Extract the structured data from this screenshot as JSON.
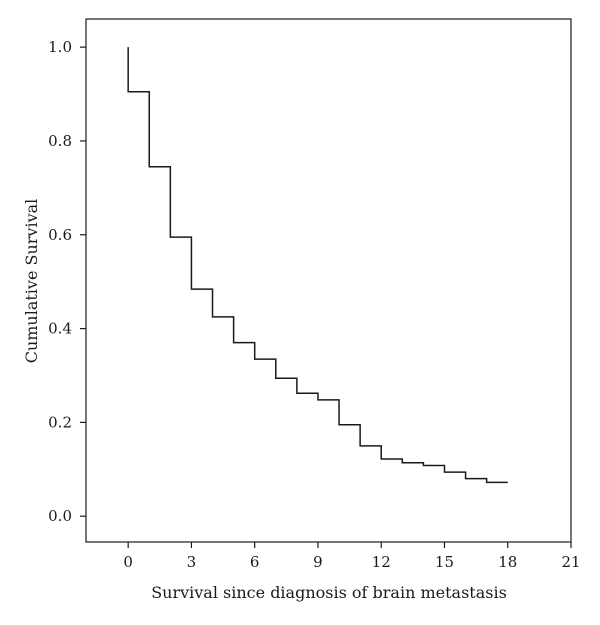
{
  "chart_data": {
    "type": "line",
    "step": true,
    "xlabel": "Survival since diagnosis of brain metastasis",
    "ylabel": "Cumulative Survival",
    "xlim": [
      -2,
      21
    ],
    "ylim": [
      -0.055,
      1.06
    ],
    "xticks": [
      0,
      3,
      6,
      9,
      12,
      15,
      18,
      21
    ],
    "yticks": [
      0.0,
      0.2,
      0.4,
      0.6,
      0.8,
      1.0
    ],
    "xtick_labels": [
      "0",
      "3",
      "6",
      "9",
      "12",
      "15",
      "18",
      "21"
    ],
    "ytick_labels": [
      "0.0",
      "0.2",
      "0.4",
      "0.6",
      "0.8",
      "1.0"
    ],
    "grid": false,
    "series": [
      {
        "x": [
          0,
          0,
          1,
          2,
          3,
          4,
          5,
          6,
          7,
          8,
          9,
          10,
          11,
          12,
          13,
          14,
          15,
          16,
          17,
          18
        ],
        "y": [
          1.0,
          0.905,
          0.745,
          0.595,
          0.484,
          0.425,
          0.37,
          0.335,
          0.294,
          0.262,
          0.248,
          0.195,
          0.15,
          0.122,
          0.114,
          0.108,
          0.094,
          0.08,
          0.072,
          0.072
        ],
        "color": "#1a1a1a"
      }
    ]
  }
}
